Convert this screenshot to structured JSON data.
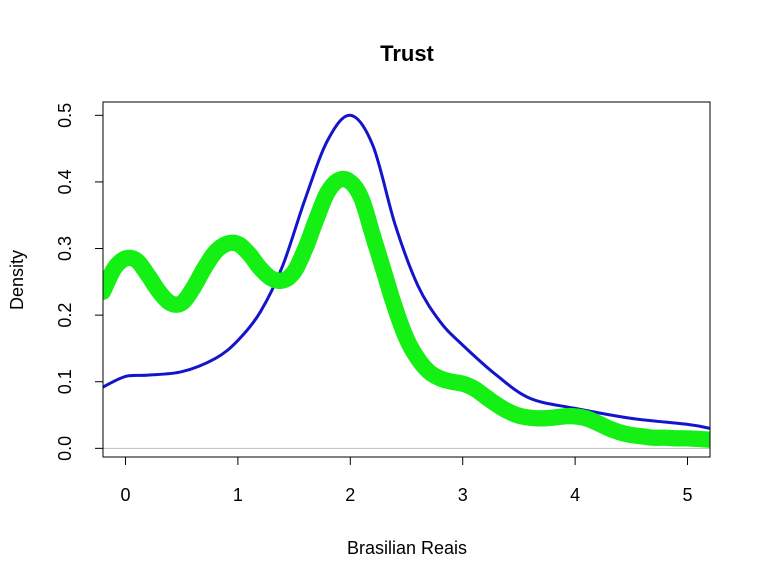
{
  "chart_data": {
    "type": "line",
    "title": "Trust",
    "xlabel": "Brasilian Reais",
    "ylabel": "Density",
    "xlim": [
      -0.2,
      5.2
    ],
    "ylim": [
      -0.013,
      0.52
    ],
    "x_ticks": [
      "0",
      "1",
      "2",
      "3",
      "4",
      "5"
    ],
    "y_ticks": [
      "0.0",
      "0.1",
      "0.2",
      "0.3",
      "0.4",
      "0.5"
    ],
    "grid": false,
    "baseline": 0,
    "colors": {
      "blue": "#1414cc",
      "green": "#14f014",
      "baseline": "#bebebe"
    },
    "series": [
      {
        "style": "line",
        "color": "#1414cc",
        "x": [
          -0.2,
          0,
          0.2,
          0.5,
          0.8,
          1.0,
          1.2,
          1.4,
          1.6,
          1.8,
          2.0,
          2.2,
          2.4,
          2.6,
          2.8,
          3.0,
          3.3,
          3.6,
          4.0,
          4.5,
          5.0,
          5.2
        ],
        "y": [
          0.092,
          0.108,
          0.11,
          0.115,
          0.135,
          0.162,
          0.205,
          0.275,
          0.375,
          0.463,
          0.5,
          0.455,
          0.335,
          0.245,
          0.19,
          0.155,
          0.11,
          0.075,
          0.06,
          0.045,
          0.036,
          0.03
        ]
      },
      {
        "style": "points",
        "color": "#14f014",
        "x": [
          -0.2,
          -0.1,
          0,
          0.1,
          0.2,
          0.3,
          0.4,
          0.5,
          0.6,
          0.7,
          0.8,
          0.9,
          1.0,
          1.1,
          1.2,
          1.3,
          1.4,
          1.5,
          1.6,
          1.7,
          1.8,
          1.9,
          2.0,
          2.1,
          2.2,
          2.3,
          2.4,
          2.5,
          2.6,
          2.7,
          2.8,
          2.9,
          3.0,
          3.1,
          3.2,
          3.3,
          3.4,
          3.5,
          3.6,
          3.7,
          3.8,
          3.9,
          4.0,
          4.1,
          4.2,
          4.3,
          4.4,
          4.5,
          4.6,
          4.7,
          4.8,
          4.9,
          5.0,
          5.1,
          5.2
        ],
        "y": [
          0.235,
          0.27,
          0.285,
          0.282,
          0.26,
          0.235,
          0.218,
          0.218,
          0.24,
          0.27,
          0.295,
          0.307,
          0.307,
          0.292,
          0.27,
          0.255,
          0.252,
          0.265,
          0.3,
          0.345,
          0.385,
          0.403,
          0.4,
          0.375,
          0.32,
          0.265,
          0.21,
          0.165,
          0.135,
          0.115,
          0.105,
          0.1,
          0.097,
          0.09,
          0.078,
          0.066,
          0.056,
          0.049,
          0.046,
          0.045,
          0.046,
          0.048,
          0.048,
          0.045,
          0.038,
          0.03,
          0.024,
          0.02,
          0.018,
          0.016,
          0.016,
          0.015,
          0.015,
          0.014,
          0.013
        ]
      }
    ]
  }
}
